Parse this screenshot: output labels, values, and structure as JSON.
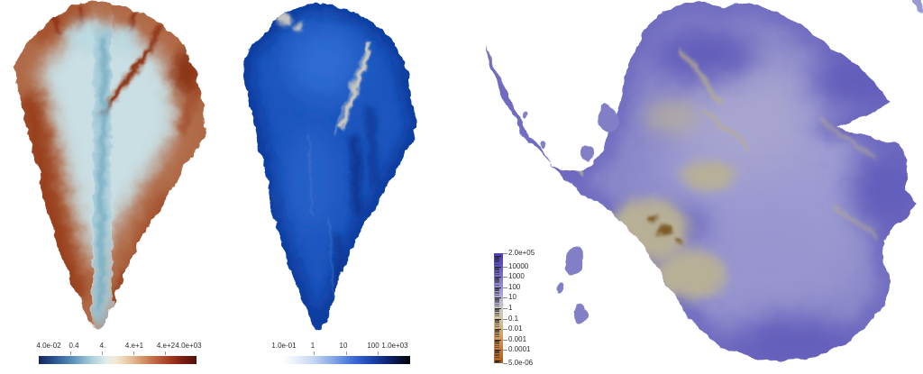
{
  "figure": {
    "description_visible_text_only": "",
    "background": "#ffffff"
  },
  "panels": [
    {
      "region": "greenland",
      "map": {
        "colormap_name": "cool-warm-diverging",
        "interior_color": "#aed0da",
        "margin_color": "#a5583a",
        "stream_color": "#7c2210"
      },
      "colorbar": {
        "orientation": "horizontal",
        "scale": "log",
        "labels": [
          "4.0e-02",
          "0.4",
          "4.",
          "4.e+1",
          "4.e+2",
          "4.0e+03"
        ],
        "min_label": "4.0e-02",
        "max_label": "4.0e+03",
        "stops": [
          {
            "c": "#13265c",
            "p": 0
          },
          {
            "c": "#2d5492",
            "p": 10
          },
          {
            "c": "#5b93bc",
            "p": 22
          },
          {
            "c": "#a7cdd8",
            "p": 33
          },
          {
            "c": "#e2ecec",
            "p": 43
          },
          {
            "c": "#f3ead9",
            "p": 48
          },
          {
            "c": "#ecd0ae",
            "p": 55
          },
          {
            "c": "#d8a074",
            "p": 64
          },
          {
            "c": "#c06a46",
            "p": 73
          },
          {
            "c": "#a43a20",
            "p": 83
          },
          {
            "c": "#7c1d10",
            "p": 91
          },
          {
            "c": "#521005",
            "p": 100
          }
        ]
      }
    },
    {
      "region": "greenland",
      "map": {
        "colormap_name": "white-blue-black",
        "body_color": "#1c55bd",
        "stream_color": "#c9c8c2"
      },
      "colorbar": {
        "orientation": "horizontal",
        "scale": "log",
        "labels": [
          "1.0e-01",
          "1",
          "10",
          "100",
          "1.0e+03"
        ],
        "min_label": "1.0e-01",
        "max_label": "1.0e+03",
        "stops": [
          {
            "c": "#ffffff",
            "p": 0
          },
          {
            "c": "#e6edfa",
            "p": 12
          },
          {
            "c": "#c2d4f2",
            "p": 25
          },
          {
            "c": "#84a7e6",
            "p": 40
          },
          {
            "c": "#3f6ed8",
            "p": 55
          },
          {
            "c": "#1f48b4",
            "p": 68
          },
          {
            "c": "#102a7e",
            "p": 80
          },
          {
            "c": "#081546",
            "p": 90
          },
          {
            "c": "#010102",
            "p": 100
          }
        ]
      }
    },
    {
      "region": "antarctica",
      "map": {
        "colormap_name": "purple-gray-orange",
        "body_color": "#8a87c9",
        "patch_color": "#b7b097",
        "spot_color": "#7c5a26"
      },
      "colorbar": {
        "orientation": "vertical",
        "scale": "log",
        "labels": [
          "2.0e+05",
          "10000",
          "1000",
          "100",
          "10",
          "1",
          "0.1",
          "0.01",
          "0.001",
          "0.0001",
          "5.0e-06"
        ],
        "min_label": "5.0e-06",
        "max_label": "2.0e+05",
        "log_max": 5.301,
        "log_min": -5.301,
        "stops": [
          {
            "c": "#4a3eb2",
            "p": 0
          },
          {
            "c": "#574cba",
            "p": 8
          },
          {
            "c": "#7d77c8",
            "p": 22
          },
          {
            "c": "#9f9cd1",
            "p": 34
          },
          {
            "c": "#bcbad4",
            "p": 44
          },
          {
            "c": "#c8c6c4",
            "p": 50
          },
          {
            "c": "#cfc5a8",
            "p": 58
          },
          {
            "c": "#d1b082",
            "p": 68
          },
          {
            "c": "#cb9150",
            "p": 80
          },
          {
            "c": "#bc7434",
            "p": 90
          },
          {
            "c": "#aa5c22",
            "p": 100
          }
        ]
      }
    }
  ]
}
